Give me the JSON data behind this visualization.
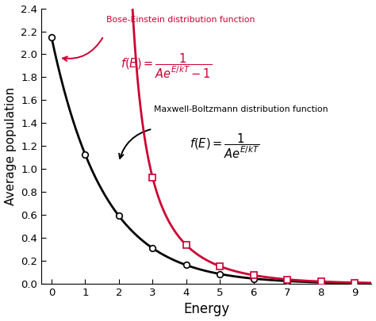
{
  "title": "",
  "xlabel": "Energy",
  "ylabel": "Average population",
  "xlim": [
    -0.3,
    9.5
  ],
  "ylim": [
    0,
    2.4
  ],
  "yticks": [
    0.0,
    0.2,
    0.4,
    0.6,
    0.8,
    1.0,
    1.2,
    1.4,
    1.6,
    1.8,
    2.0,
    2.2,
    2.4
  ],
  "xticks": [
    0,
    1,
    2,
    3,
    4,
    5,
    6,
    7,
    8,
    9
  ],
  "bose_color": "#cc0033",
  "mb_color": "#000000",
  "A_mb": 0.465,
  "kT_mb": 1.55,
  "A_bose": 0.3,
  "kT_bose": 1.55,
  "marker_x": [
    0,
    1,
    2,
    3,
    4,
    5,
    6,
    7,
    8,
    9
  ],
  "bose_label": "Bose-Einstein distribution function",
  "mb_label": "Maxwell-Boltzmann distribution function",
  "background_color": "#ffffff"
}
